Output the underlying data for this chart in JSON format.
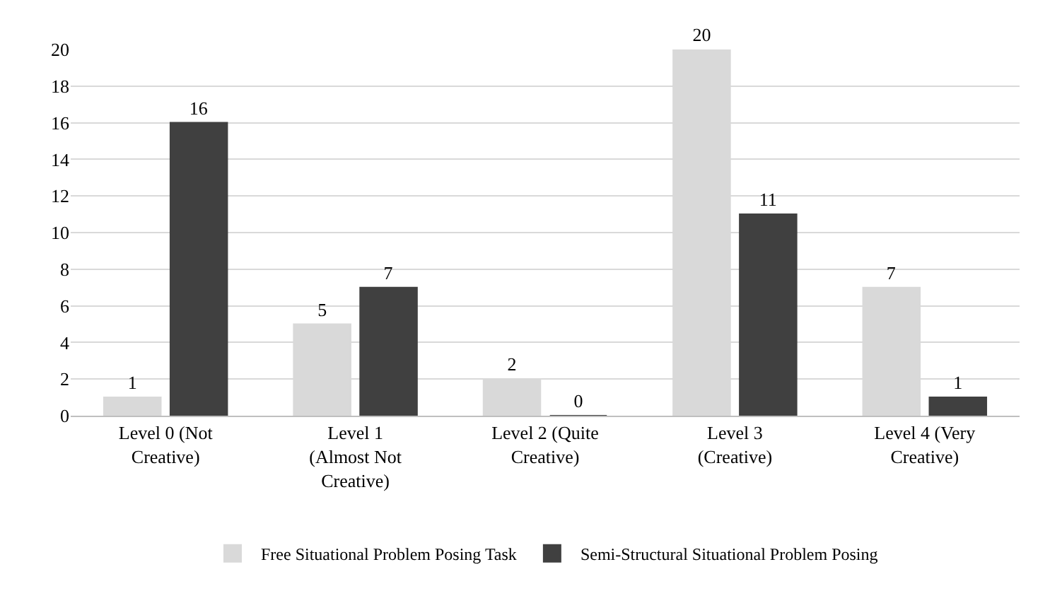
{
  "chart_data": {
    "type": "bar",
    "categories": [
      "Level 0 (Not Creative)",
      "Level 1 (Almost Not Creative)",
      "Level 2 (Quite Creative)",
      "Level 3 (Creative)",
      "Level 4 (Very Creative)"
    ],
    "series": [
      {
        "name": "Free Situational Problem Posing Task",
        "color": "#d9d9d9",
        "values": [
          1,
          5,
          2,
          20,
          7
        ]
      },
      {
        "name": "Semi-Structural Situational Problem Posing",
        "color": "#404040",
        "values": [
          16,
          7,
          0,
          11,
          1
        ]
      }
    ],
    "ylim": [
      0,
      20
    ],
    "yticks": [
      0,
      2,
      4,
      6,
      8,
      10,
      12,
      14,
      16,
      18,
      20
    ],
    "grid": "y",
    "legend": "bottom",
    "data_labels": true
  }
}
